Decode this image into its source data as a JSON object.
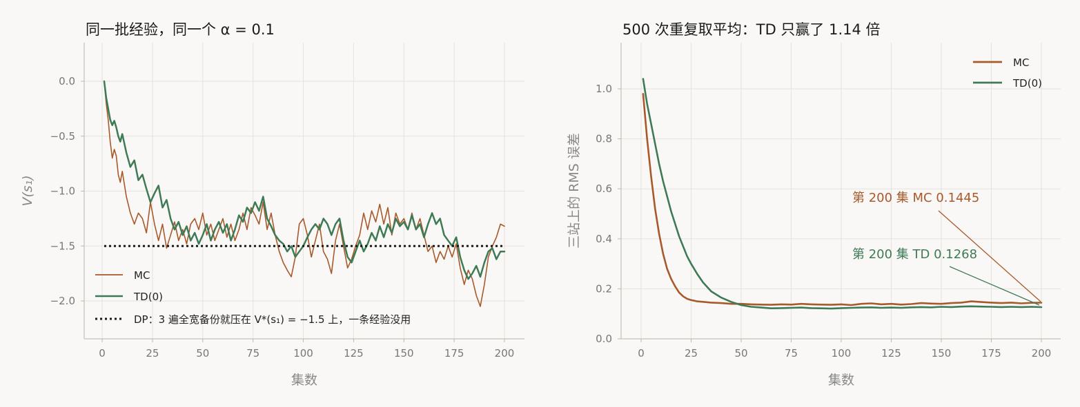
{
  "chart_data": [
    {
      "type": "line",
      "title": "同一批经验，同一个 α = 0.1",
      "xlabel": "集数",
      "ylabel": "V(s₁)",
      "xlim": [
        -10,
        210
      ],
      "ylim": [
        -2.35,
        0.35
      ],
      "xticks": [
        0,
        25,
        50,
        75,
        100,
        125,
        150,
        175,
        200
      ],
      "xtick_labels": [
        "0",
        "25",
        "50",
        "75",
        "100",
        "125",
        "150",
        "175",
        "200"
      ],
      "yticks": [
        0.0,
        -0.5,
        -1.0,
        -1.5,
        -2.0
      ],
      "ytick_labels": [
        "0.0",
        "−0.5",
        "−1.0",
        "−1.5",
        "−2.0"
      ],
      "grid": true,
      "legend_position": "lower-left",
      "series": [
        {
          "name": "MC",
          "color": "#a8592a",
          "x": [
            1,
            2,
            3,
            4,
            5,
            6,
            7,
            8,
            9,
            10,
            12,
            14,
            16,
            18,
            20,
            22,
            24,
            26,
            28,
            30,
            32,
            34,
            36,
            38,
            40,
            42,
            44,
            46,
            48,
            50,
            52,
            54,
            56,
            58,
            60,
            62,
            64,
            66,
            68,
            70,
            72,
            74,
            76,
            78,
            80,
            82,
            84,
            86,
            88,
            90,
            92,
            94,
            96,
            98,
            100,
            102,
            104,
            106,
            108,
            110,
            112,
            114,
            116,
            118,
            120,
            122,
            124,
            126,
            128,
            130,
            132,
            134,
            136,
            138,
            140,
            142,
            144,
            146,
            148,
            150,
            152,
            154,
            156,
            158,
            160,
            162,
            164,
            166,
            168,
            170,
            172,
            174,
            176,
            178,
            180,
            182,
            184,
            186,
            188,
            190,
            192,
            194,
            196,
            198,
            200
          ],
          "y": [
            0.0,
            -0.2,
            -0.35,
            -0.55,
            -0.7,
            -0.62,
            -0.68,
            -0.85,
            -0.92,
            -0.82,
            -1.05,
            -1.2,
            -1.3,
            -1.2,
            -1.25,
            -1.38,
            -1.1,
            -1.3,
            -1.45,
            -1.3,
            -1.52,
            -1.4,
            -1.28,
            -1.45,
            -1.35,
            -1.48,
            -1.3,
            -1.25,
            -1.35,
            -1.2,
            -1.4,
            -1.3,
            -1.45,
            -1.35,
            -1.25,
            -1.42,
            -1.3,
            -1.45,
            -1.35,
            -1.2,
            -1.35,
            -1.15,
            -1.22,
            -1.3,
            -1.1,
            -1.35,
            -1.2,
            -1.4,
            -1.55,
            -1.65,
            -1.72,
            -1.78,
            -1.6,
            -1.3,
            -1.25,
            -1.4,
            -1.6,
            -1.45,
            -1.3,
            -1.55,
            -1.62,
            -1.75,
            -1.45,
            -1.3,
            -1.5,
            -1.7,
            -1.62,
            -1.5,
            -1.4,
            -1.2,
            -1.35,
            -1.18,
            -1.28,
            -1.12,
            -1.3,
            -1.15,
            -1.4,
            -1.2,
            -1.3,
            -1.25,
            -1.35,
            -1.2,
            -1.35,
            -1.25,
            -1.4,
            -1.55,
            -1.5,
            -1.65,
            -1.55,
            -1.62,
            -1.5,
            -1.6,
            -1.48,
            -1.7,
            -1.85,
            -1.72,
            -1.8,
            -1.95,
            -2.05,
            -1.85,
            -1.6,
            -1.5,
            -1.42,
            -1.3,
            -1.32
          ]
        },
        {
          "name": "TD(0)",
          "color": "#3e7a55",
          "x": [
            1,
            2,
            3,
            4,
            5,
            6,
            7,
            8,
            9,
            10,
            12,
            14,
            16,
            18,
            20,
            22,
            24,
            26,
            28,
            30,
            32,
            34,
            36,
            38,
            40,
            42,
            44,
            46,
            48,
            50,
            52,
            54,
            56,
            58,
            60,
            62,
            64,
            66,
            68,
            70,
            72,
            74,
            76,
            78,
            80,
            82,
            84,
            86,
            88,
            90,
            92,
            94,
            96,
            98,
            100,
            102,
            104,
            106,
            108,
            110,
            112,
            114,
            116,
            118,
            120,
            122,
            124,
            126,
            128,
            130,
            132,
            134,
            136,
            138,
            140,
            142,
            144,
            146,
            148,
            150,
            152,
            154,
            156,
            158,
            160,
            162,
            164,
            166,
            168,
            170,
            172,
            174,
            176,
            178,
            180,
            182,
            184,
            186,
            188,
            190,
            192,
            194,
            196,
            198,
            200
          ],
          "y": [
            0.0,
            -0.15,
            -0.25,
            -0.35,
            -0.4,
            -0.36,
            -0.42,
            -0.5,
            -0.55,
            -0.48,
            -0.65,
            -0.78,
            -0.72,
            -0.9,
            -0.85,
            -0.98,
            -1.1,
            -1.02,
            -0.95,
            -1.15,
            -1.08,
            -1.25,
            -1.35,
            -1.28,
            -1.4,
            -1.32,
            -1.45,
            -1.38,
            -1.48,
            -1.4,
            -1.3,
            -1.45,
            -1.35,
            -1.28,
            -1.38,
            -1.3,
            -1.45,
            -1.35,
            -1.22,
            -1.28,
            -1.15,
            -1.2,
            -1.1,
            -1.18,
            -1.05,
            -1.25,
            -1.32,
            -1.4,
            -1.45,
            -1.48,
            -1.55,
            -1.5,
            -1.6,
            -1.55,
            -1.5,
            -1.42,
            -1.35,
            -1.3,
            -1.35,
            -1.25,
            -1.3,
            -1.4,
            -1.3,
            -1.25,
            -1.45,
            -1.6,
            -1.65,
            -1.55,
            -1.45,
            -1.55,
            -1.48,
            -1.38,
            -1.45,
            -1.32,
            -1.42,
            -1.3,
            -1.38,
            -1.25,
            -1.32,
            -1.28,
            -1.35,
            -1.22,
            -1.35,
            -1.3,
            -1.42,
            -1.3,
            -1.2,
            -1.3,
            -1.25,
            -1.4,
            -1.45,
            -1.5,
            -1.42,
            -1.6,
            -1.72,
            -1.8,
            -1.75,
            -1.68,
            -1.78,
            -1.65,
            -1.55,
            -1.52,
            -1.62,
            -1.55,
            -1.55
          ]
        },
        {
          "name": "DP：3 遍全宽备份就压在 V*(s₁) = −1.5 上，一条经验没用",
          "color": "#1a1a1a",
          "style": "dotted",
          "x": [
            1,
            200
          ],
          "y": [
            -1.5,
            -1.5
          ]
        }
      ]
    },
    {
      "type": "line",
      "title": "500 次重复取平均：TD 只赢了 1.14 倍",
      "xlabel": "集数",
      "ylabel": "三站上的 RMS 误差",
      "xlim": [
        -10,
        210
      ],
      "ylim": [
        0,
        1.2
      ],
      "xticks": [
        0,
        25,
        50,
        75,
        100,
        125,
        150,
        175,
        200
      ],
      "xtick_labels": [
        "0",
        "25",
        "50",
        "75",
        "100",
        "125",
        "150",
        "175",
        "200"
      ],
      "yticks": [
        0.0,
        0.2,
        0.4,
        0.6,
        0.8,
        1.0
      ],
      "ytick_labels": [
        "0.0",
        "0.2",
        "0.4",
        "0.6",
        "0.8",
        "1.0"
      ],
      "grid": true,
      "legend_position": "top-right",
      "series": [
        {
          "name": "MC",
          "color": "#a8592a",
          "x": [
            1,
            3,
            5,
            7,
            9,
            11,
            13,
            15,
            17,
            19,
            21,
            23,
            25,
            28,
            31,
            35,
            40,
            45,
            50,
            55,
            60,
            65,
            70,
            75,
            80,
            85,
            90,
            95,
            100,
            105,
            110,
            115,
            120,
            125,
            130,
            135,
            140,
            145,
            150,
            155,
            160,
            165,
            170,
            175,
            180,
            185,
            190,
            195,
            200
          ],
          "y": [
            0.98,
            0.8,
            0.65,
            0.52,
            0.42,
            0.34,
            0.28,
            0.24,
            0.21,
            0.185,
            0.17,
            0.16,
            0.155,
            0.15,
            0.148,
            0.145,
            0.143,
            0.14,
            0.14,
            0.138,
            0.137,
            0.136,
            0.138,
            0.137,
            0.14,
            0.138,
            0.137,
            0.136,
            0.138,
            0.135,
            0.14,
            0.142,
            0.138,
            0.14,
            0.137,
            0.139,
            0.143,
            0.141,
            0.14,
            0.143,
            0.145,
            0.15,
            0.147,
            0.145,
            0.143,
            0.145,
            0.142,
            0.144,
            0.1445
          ]
        },
        {
          "name": "TD(0)",
          "color": "#3e7a55",
          "x": [
            1,
            3,
            5,
            7,
            9,
            11,
            13,
            15,
            17,
            19,
            21,
            23,
            25,
            28,
            31,
            35,
            40,
            45,
            50,
            55,
            60,
            65,
            70,
            75,
            80,
            85,
            90,
            95,
            100,
            105,
            110,
            115,
            120,
            125,
            130,
            135,
            140,
            145,
            150,
            155,
            160,
            165,
            170,
            175,
            180,
            185,
            190,
            195,
            200
          ],
          "y": [
            1.04,
            0.94,
            0.86,
            0.78,
            0.7,
            0.63,
            0.57,
            0.51,
            0.46,
            0.41,
            0.37,
            0.33,
            0.3,
            0.26,
            0.225,
            0.19,
            0.165,
            0.148,
            0.135,
            0.128,
            0.125,
            0.122,
            0.123,
            0.124,
            0.125,
            0.123,
            0.122,
            0.121,
            0.123,
            0.124,
            0.125,
            0.126,
            0.124,
            0.125,
            0.124,
            0.126,
            0.127,
            0.126,
            0.128,
            0.127,
            0.129,
            0.13,
            0.129,
            0.128,
            0.127,
            0.128,
            0.127,
            0.128,
            0.1268
          ]
        }
      ],
      "annotations": [
        {
          "text": "第 200 集 MC 0.1445",
          "color": "#a8592a",
          "x": 200,
          "y": 0.1445
        },
        {
          "text": "第 200 集 TD 0.1268",
          "color": "#3e7a55",
          "x": 200,
          "y": 0.1268
        }
      ]
    }
  ]
}
